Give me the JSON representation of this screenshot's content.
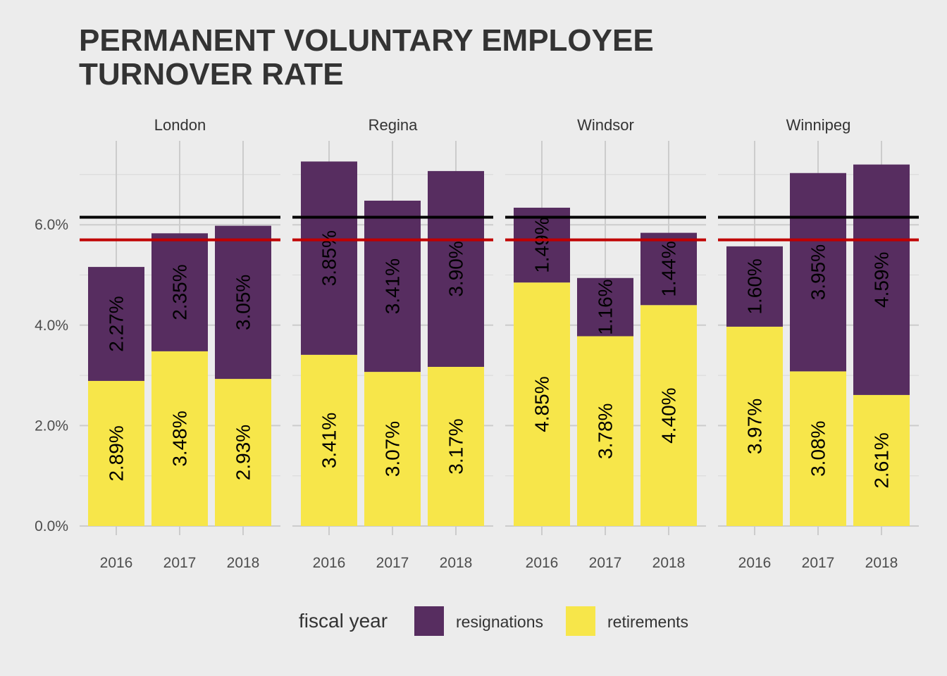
{
  "title_lines": [
    "PERMANENT VOLUNTARY EMPLOYEE",
    "TURNOVER RATE"
  ],
  "colors": {
    "resignations": "#572d60",
    "retirements": "#f7e64a",
    "upper_reference_line": "#000000",
    "lower_reference_line": "#c00000",
    "background": "#ececec",
    "grid": "#cccccc"
  },
  "chart_data": {
    "type": "bar",
    "stacked": true,
    "facets": [
      "London",
      "Regina",
      "Windsor",
      "Winnipeg"
    ],
    "categories": [
      "2016",
      "2017",
      "2018"
    ],
    "series": [
      {
        "name": "retirements",
        "values": {
          "London": [
            2.89,
            3.48,
            2.93
          ],
          "Regina": [
            3.41,
            3.07,
            3.17
          ],
          "Windsor": [
            4.85,
            3.78,
            4.4
          ],
          "Winnipeg": [
            3.97,
            3.08,
            2.61
          ]
        }
      },
      {
        "name": "resignations",
        "values": {
          "London": [
            2.27,
            2.35,
            3.05
          ],
          "Regina": [
            3.85,
            3.41,
            3.9
          ],
          "Windsor": [
            1.49,
            1.16,
            1.44
          ],
          "Winnipeg": [
            1.6,
            3.95,
            4.59
          ]
        }
      }
    ],
    "reference_lines": [
      {
        "value": 6.15,
        "color": "#000000"
      },
      {
        "value": 5.7,
        "color": "#c00000"
      }
    ],
    "y_ticks": [
      "0.0%",
      "2.0%",
      "4.0%",
      "6.0%"
    ],
    "y_tick_values": [
      0,
      2,
      4,
      6
    ],
    "ylim": [
      0,
      7.5
    ],
    "grid": true,
    "legend_title": "fiscal year",
    "legend_position": "bottom"
  }
}
